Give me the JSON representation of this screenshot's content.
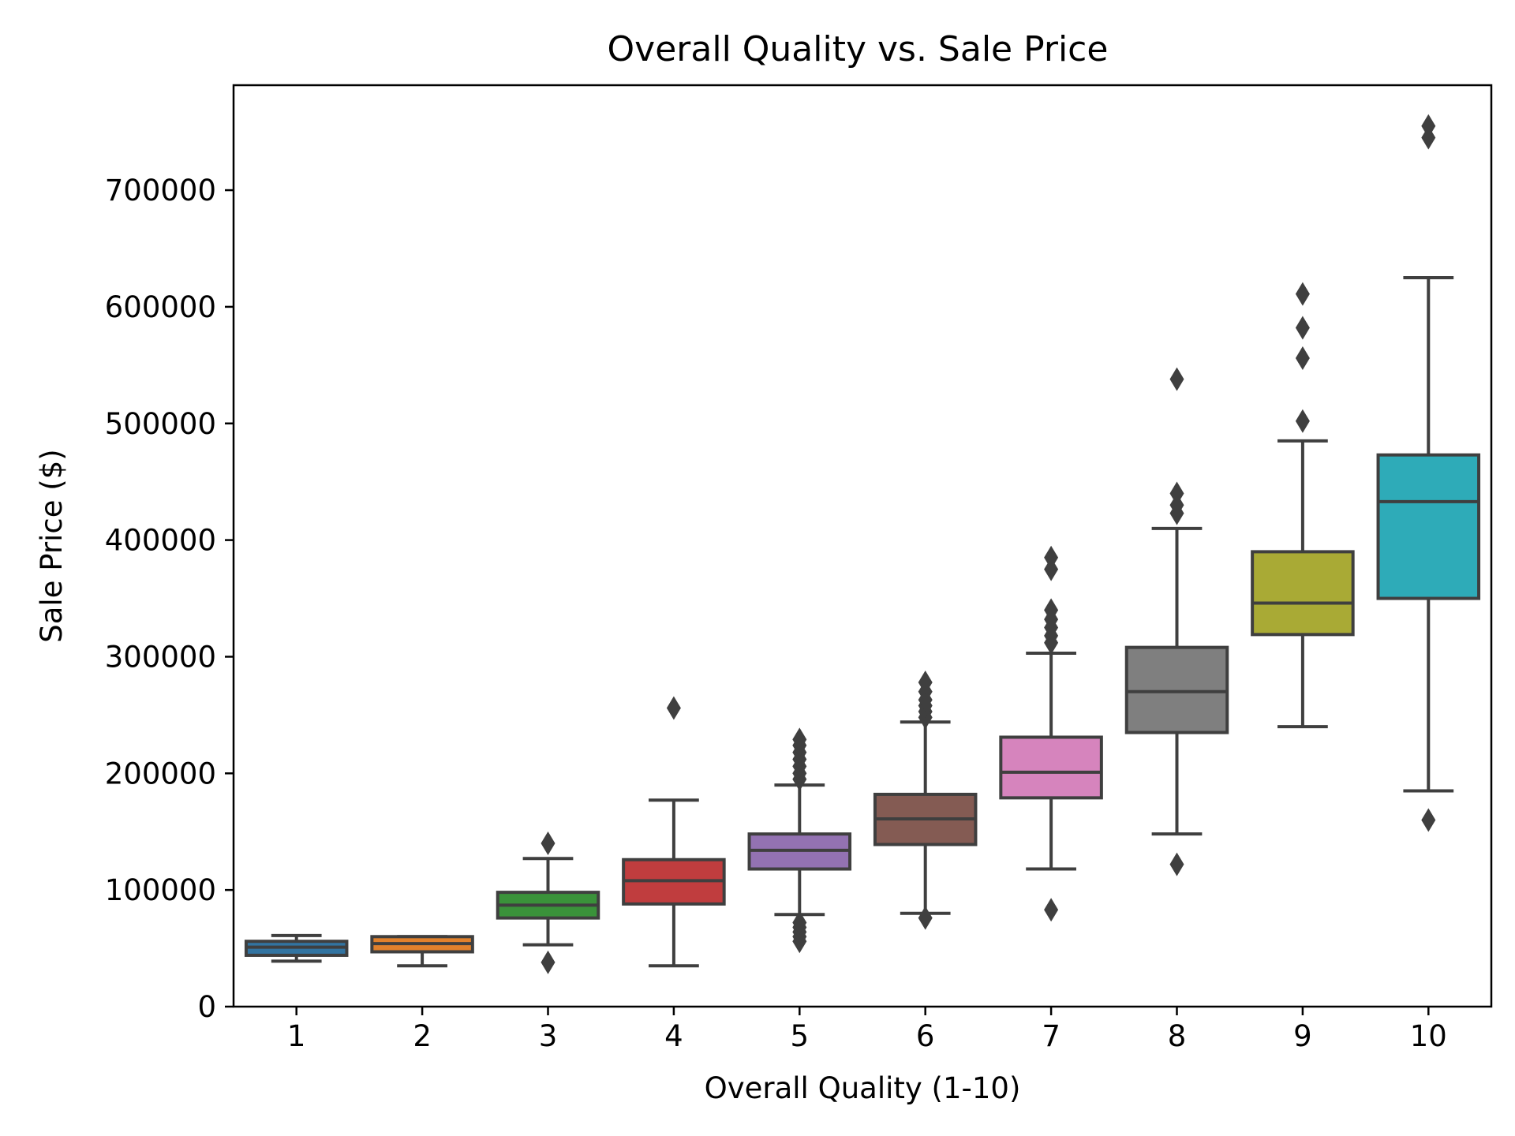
{
  "chart_data": {
    "type": "box",
    "title": "Overall Quality vs. Sale Price",
    "xlabel": "Overall Quality (1-10)",
    "ylabel": "Sale Price ($)",
    "ylim": [
      0,
      790000
    ],
    "yticks": [
      0,
      100000,
      200000,
      300000,
      400000,
      500000,
      600000,
      700000
    ],
    "ytick_labels": [
      "0",
      "100000",
      "200000",
      "300000",
      "400000",
      "500000",
      "600000",
      "700000"
    ],
    "grid": false,
    "categories": [
      "1",
      "2",
      "3",
      "4",
      "5",
      "6",
      "7",
      "8",
      "9",
      "10"
    ],
    "boxes": [
      {
        "category": "1",
        "whisker_low": 39000,
        "q1": 44000,
        "median": 51000,
        "q3": 56000,
        "whisker_high": 61000,
        "outliers": [],
        "color": "#3274a1"
      },
      {
        "category": "2",
        "whisker_low": 35000,
        "q1": 47000,
        "median": 54000,
        "q3": 60000,
        "whisker_high": 60000,
        "outliers": [],
        "color": "#e1812c"
      },
      {
        "category": "3",
        "whisker_low": 53000,
        "q1": 76000,
        "median": 87000,
        "q3": 98000,
        "whisker_high": 127000,
        "outliers": [
          38000,
          140000
        ],
        "color": "#3a923a"
      },
      {
        "category": "4",
        "whisker_low": 35000,
        "q1": 88000,
        "median": 108000,
        "q3": 126000,
        "whisker_high": 177000,
        "outliers": [
          256000
        ],
        "color": "#c03d3e"
      },
      {
        "category": "5",
        "whisker_low": 79000,
        "q1": 118000,
        "median": 134000,
        "q3": 148000,
        "whisker_high": 190000,
        "outliers": [
          56000,
          60000,
          64000,
          68000,
          72000,
          195000,
          200000,
          206000,
          212000,
          218000,
          224000,
          229000
        ],
        "color": "#9372b2"
      },
      {
        "category": "6",
        "whisker_low": 80000,
        "q1": 139000,
        "median": 161000,
        "q3": 182000,
        "whisker_high": 244000,
        "outliers": [
          76000,
          248000,
          253000,
          258000,
          263000,
          270000,
          278000
        ],
        "color": "#845b53"
      },
      {
        "category": "7",
        "whisker_low": 118000,
        "q1": 179000,
        "median": 201000,
        "q3": 231000,
        "whisker_high": 303000,
        "outliers": [
          83000,
          312000,
          318000,
          325000,
          332000,
          340000,
          375000,
          385000
        ],
        "color": "#d684bd"
      },
      {
        "category": "8",
        "whisker_low": 148000,
        "q1": 235000,
        "median": 270000,
        "q3": 308000,
        "whisker_high": 410000,
        "outliers": [
          122000,
          423000,
          430000,
          440000,
          538000
        ],
        "color": "#7f7f7f"
      },
      {
        "category": "9",
        "whisker_low": 240000,
        "q1": 319000,
        "median": 346000,
        "q3": 390000,
        "whisker_high": 485000,
        "outliers": [
          502000,
          556000,
          582000,
          611000
        ],
        "color": "#a9aa35"
      },
      {
        "category": "10",
        "whisker_low": 185000,
        "q1": 350000,
        "median": 433000,
        "q3": 473000,
        "whisker_high": 625000,
        "outliers": [
          160000,
          745000,
          755000
        ],
        "color": "#2eabb8"
      }
    ]
  }
}
